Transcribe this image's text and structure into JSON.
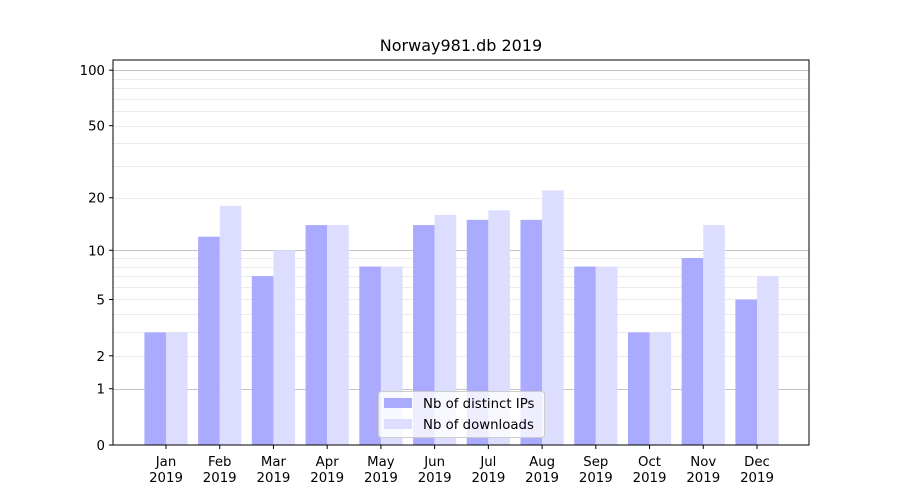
{
  "chart_data": {
    "type": "bar",
    "title": "Norway981.db 2019",
    "xlabel": "",
    "ylabel": "",
    "yscale": "log10(1+x)",
    "ylim": [
      0,
      110
    ],
    "yticks": [
      0,
      1,
      2,
      5,
      10,
      20,
      50,
      100
    ],
    "ytick_labels": [
      "0",
      "1",
      "2",
      "5",
      "10",
      "20",
      "50",
      "100"
    ],
    "grid": {
      "major": [
        1,
        10,
        100
      ],
      "minor": [
        2,
        3,
        4,
        5,
        6,
        7,
        8,
        9,
        20,
        30,
        40,
        50,
        60,
        70,
        80,
        90
      ]
    },
    "categories": [
      [
        "Jan",
        "2019"
      ],
      [
        "Feb",
        "2019"
      ],
      [
        "Mar",
        "2019"
      ],
      [
        "Apr",
        "2019"
      ],
      [
        "May",
        "2019"
      ],
      [
        "Jun",
        "2019"
      ],
      [
        "Jul",
        "2019"
      ],
      [
        "Aug",
        "2019"
      ],
      [
        "Sep",
        "2019"
      ],
      [
        "Oct",
        "2019"
      ],
      [
        "Nov",
        "2019"
      ],
      [
        "Dec",
        "2019"
      ]
    ],
    "series": [
      {
        "name": "Nb of distinct IPs",
        "color": "#aaaaff",
        "values": [
          3,
          12,
          7,
          14,
          8,
          14,
          15,
          15,
          8,
          3,
          9,
          5
        ]
      },
      {
        "name": "Nb of downloads",
        "color": "#ddddff",
        "values": [
          3,
          18,
          10,
          14,
          8,
          16,
          17,
          22,
          8,
          3,
          14,
          7
        ]
      }
    ],
    "legend": {
      "position": "lower-center"
    }
  }
}
